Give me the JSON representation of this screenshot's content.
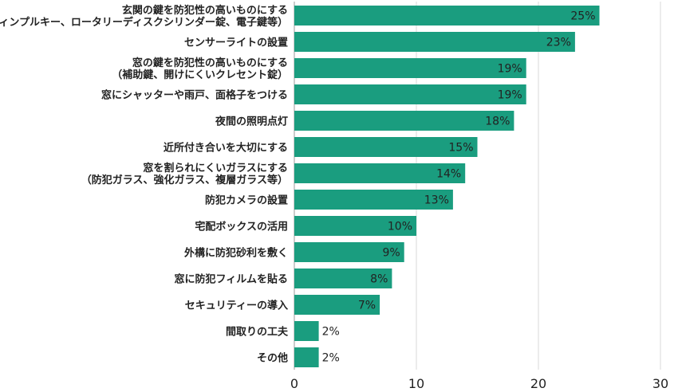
{
  "chart_data": {
    "type": "bar",
    "orientation": "horizontal",
    "categories": [
      [
        "玄関の鍵を防犯性の高いものにする",
        "（ディンプルキー、ロータリーディスクシリンダー錠、電子鍵等）"
      ],
      [
        "センサーライトの設置"
      ],
      [
        "窓の鍵を防犯性の高いものにする",
        "（補助鍵、開けにくいクレセント錠）"
      ],
      [
        "窓にシャッターや雨戸、面格子をつける"
      ],
      [
        "夜間の照明点灯"
      ],
      [
        "近所付き合いを大切にする"
      ],
      [
        "窓を割られにくいガラスにする",
        "（防犯ガラス、強化ガラス、複層ガラス等）"
      ],
      [
        "防犯カメラの設置"
      ],
      [
        "宅配ボックスの活用"
      ],
      [
        "外構に防犯砂利を敷く"
      ],
      [
        "窓に防犯フィルムを貼る"
      ],
      [
        "セキュリティーの導入"
      ],
      [
        "間取りの工夫"
      ],
      [
        "その他"
      ]
    ],
    "values": [
      25,
      23,
      19,
      19,
      18,
      15,
      14,
      13,
      10,
      9,
      8,
      7,
      2,
      2
    ],
    "value_labels": [
      "25%",
      "23%",
      "19%",
      "19%",
      "18%",
      "15%",
      "14%",
      "13%",
      "10%",
      "9%",
      "8%",
      "7%",
      "2%",
      "2%"
    ],
    "x_ticks": [
      "0",
      "10",
      "20",
      "30"
    ],
    "xlim": [
      0,
      30
    ],
    "grid": true,
    "bar_color": "#1a9d7f",
    "title": "",
    "xlabel": "",
    "ylabel": ""
  }
}
